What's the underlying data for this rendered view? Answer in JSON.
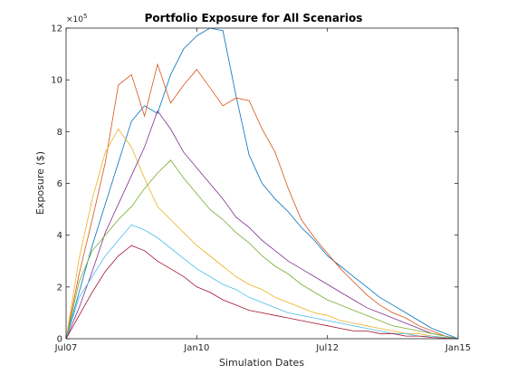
{
  "chart_data": {
    "type": "line",
    "title": "Portfolio Exposure for All Scenarios",
    "xlabel": "Simulation Dates",
    "ylabel": "Exposure ($)",
    "exponent_label": "×10",
    "exponent_power": "5",
    "x_ticks": [
      "Jul07",
      "Jan10",
      "Jul12",
      "Jan15"
    ],
    "y_ticks": [
      "0",
      "2",
      "4",
      "6",
      "8",
      "10",
      "12"
    ],
    "ylim": [
      0,
      12
    ],
    "y_units": "×10^5 $",
    "grid": false,
    "x_range": [
      "Jul07",
      "Jan15"
    ],
    "series_colors": [
      "#0072BD",
      "#D95319",
      "#EDB120",
      "#7E2F8E",
      "#77AC30",
      "#4DBEEE",
      "#A2142F"
    ],
    "x_dates": [
      "Jul07",
      "Dec07",
      "Jan08",
      "Apr08",
      "Jul08",
      "Oct08",
      "Jan09",
      "Apr09",
      "Jul09",
      "Oct09",
      "Jan10",
      "Apr10",
      "Jul10",
      "Oct10",
      "Jan11",
      "Apr11",
      "Jul11",
      "Oct11",
      "Jan12",
      "Apr12",
      "Jul12",
      "Oct12",
      "Jan13",
      "Apr13",
      "Jul13",
      "Oct13",
      "Jan14",
      "Apr14",
      "Jul14",
      "Oct14",
      "Jan15"
    ],
    "series": [
      {
        "values": [
          0,
          1.8,
          3.6,
          5.2,
          6.8,
          8.4,
          9.0,
          8.7,
          10.2,
          11.2,
          11.7,
          12.0,
          11.9,
          9.4,
          7.1,
          6.0,
          5.4,
          4.9,
          4.3,
          3.8,
          3.2,
          2.8,
          2.4,
          2.0,
          1.6,
          1.3,
          1.0,
          0.7,
          0.4,
          0.2,
          0
        ]
      },
      {
        "values": [
          0,
          2.5,
          4.6,
          6.8,
          9.8,
          10.2,
          8.6,
          10.6,
          9.1,
          9.8,
          10.4,
          9.7,
          9.0,
          9.3,
          9.2,
          8.1,
          7.2,
          5.8,
          4.6,
          3.9,
          3.3,
          2.7,
          2.2,
          1.7,
          1.3,
          1.0,
          0.8,
          0.5,
          0.3,
          0.1,
          0
        ]
      },
      {
        "values": [
          0,
          3.1,
          5.4,
          7.2,
          8.1,
          7.4,
          6.2,
          5.1,
          4.6,
          4.1,
          3.6,
          3.2,
          2.8,
          2.4,
          2.1,
          1.9,
          1.6,
          1.4,
          1.2,
          1.0,
          0.9,
          0.7,
          0.6,
          0.5,
          0.4,
          0.3,
          0.2,
          0.2,
          0.1,
          0.05,
          0
        ]
      },
      {
        "values": [
          0,
          1.2,
          2.6,
          4.1,
          5.2,
          6.3,
          7.4,
          8.8,
          8.1,
          7.2,
          6.6,
          6.0,
          5.4,
          4.7,
          4.3,
          3.8,
          3.4,
          3.0,
          2.7,
          2.4,
          2.1,
          1.8,
          1.5,
          1.2,
          1.0,
          0.8,
          0.6,
          0.4,
          0.2,
          0.1,
          0
        ]
      },
      {
        "values": [
          0,
          2.2,
          3.4,
          4.0,
          4.6,
          5.1,
          5.8,
          6.4,
          6.9,
          6.2,
          5.6,
          5.0,
          4.6,
          4.1,
          3.7,
          3.2,
          2.8,
          2.5,
          2.1,
          1.8,
          1.5,
          1.3,
          1.1,
          0.9,
          0.7,
          0.5,
          0.4,
          0.3,
          0.2,
          0.1,
          0
        ]
      },
      {
        "values": [
          0,
          1.6,
          2.4,
          3.2,
          3.8,
          4.4,
          4.2,
          3.9,
          3.5,
          3.1,
          2.7,
          2.4,
          2.1,
          1.9,
          1.6,
          1.4,
          1.2,
          1.0,
          0.9,
          0.8,
          0.7,
          0.6,
          0.5,
          0.4,
          0.3,
          0.2,
          0.2,
          0.1,
          0.1,
          0.05,
          0
        ]
      },
      {
        "values": [
          0,
          0.9,
          1.8,
          2.6,
          3.2,
          3.6,
          3.4,
          3.0,
          2.7,
          2.4,
          2.0,
          1.8,
          1.5,
          1.3,
          1.1,
          1.0,
          0.9,
          0.8,
          0.7,
          0.6,
          0.5,
          0.4,
          0.3,
          0.3,
          0.2,
          0.2,
          0.1,
          0.1,
          0.05,
          0.02,
          0
        ]
      }
    ]
  }
}
